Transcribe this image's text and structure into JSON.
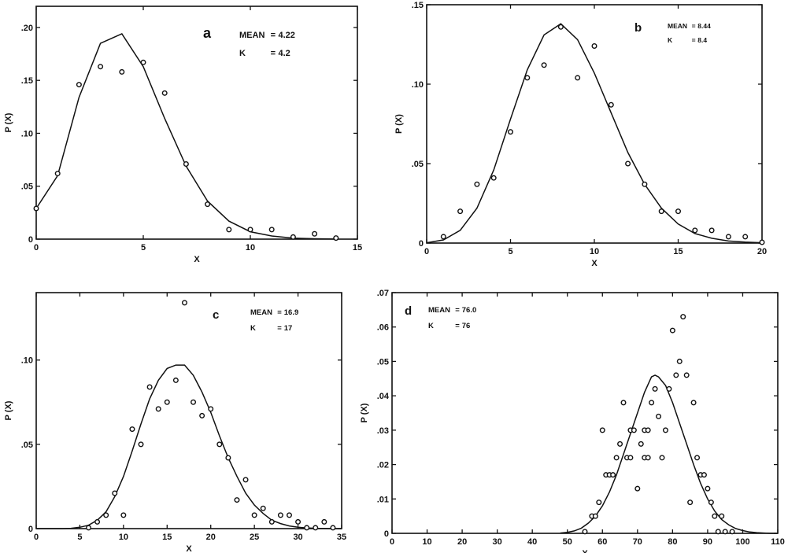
{
  "chart_data": [
    {
      "type": "line",
      "panel": "a",
      "annotations": [
        {
          "label": "MEAN",
          "value": "4.22"
        },
        {
          "label": "K",
          "value": "4.2"
        }
      ],
      "xlabel": "X",
      "ylabel": "P (X)",
      "xlim": [
        0,
        15
      ],
      "ylim": [
        0,
        0.22
      ],
      "x_ticks": [
        0,
        5,
        10,
        15
      ],
      "x_tick_labels": [
        "0",
        "5",
        "10",
        "15"
      ],
      "y_ticks": [
        0,
        0.05,
        0.1,
        0.15,
        0.2
      ],
      "y_tick_labels": [
        "0",
        ".05",
        ".10",
        ".15",
        ".20"
      ],
      "grid": false,
      "series": [
        {
          "kind": "line",
          "x": [
            0,
            1,
            2,
            3,
            4,
            5,
            6,
            7,
            8,
            9,
            10,
            11,
            12,
            13,
            14
          ],
          "y": [
            0.029,
            0.06,
            0.134,
            0.185,
            0.194,
            0.163,
            0.114,
            0.069,
            0.036,
            0.017,
            0.007,
            0.003,
            0.001,
            0.0004,
            0.0001
          ]
        },
        {
          "kind": "points",
          "x": [
            0,
            1,
            2,
            3,
            4,
            5,
            6,
            7,
            8,
            9,
            10,
            11,
            12,
            13,
            14
          ],
          "y": [
            0.029,
            0.062,
            0.146,
            0.163,
            0.158,
            0.167,
            0.138,
            0.071,
            0.033,
            0.009,
            0.009,
            0.009,
            0.002,
            0.005,
            0.001
          ]
        }
      ]
    },
    {
      "type": "line",
      "panel": "b",
      "annotations": [
        {
          "label": "MEAN",
          "value": "8.44"
        },
        {
          "label": "K",
          "value": "8.4"
        }
      ],
      "xlabel": "X",
      "ylabel": "P (X)",
      "xlim": [
        0,
        20
      ],
      "ylim": [
        0,
        0.15
      ],
      "x_ticks": [
        0,
        5,
        10,
        15,
        20
      ],
      "x_tick_labels": [
        "0",
        "5",
        "10",
        "15",
        "20"
      ],
      "y_ticks": [
        0,
        0.05,
        0.1,
        0.15
      ],
      "y_tick_labels": [
        "0",
        ".05",
        ".10",
        ".15"
      ],
      "grid": false,
      "series": [
        {
          "kind": "line",
          "x": [
            0,
            1,
            2,
            3,
            4,
            5,
            6,
            7,
            8,
            9,
            10,
            11,
            12,
            13,
            14,
            15,
            16,
            17,
            18,
            19,
            20
          ],
          "y": [
            0.0002,
            0.002,
            0.008,
            0.022,
            0.046,
            0.078,
            0.109,
            0.131,
            0.138,
            0.128,
            0.107,
            0.082,
            0.057,
            0.037,
            0.022,
            0.012,
            0.006,
            0.003,
            0.0013,
            0.0006,
            0.0002
          ]
        },
        {
          "kind": "points",
          "x": [
            1,
            2,
            3,
            4,
            5,
            6,
            7,
            8,
            9,
            10,
            11,
            12,
            13,
            14,
            15,
            16,
            17,
            18,
            19,
            20
          ],
          "y": [
            0.004,
            0.02,
            0.037,
            0.041,
            0.07,
            0.104,
            0.112,
            0.136,
            0.104,
            0.124,
            0.087,
            0.05,
            0.037,
            0.02,
            0.02,
            0.008,
            0.008,
            0.004,
            0.004,
            0.0005
          ]
        }
      ]
    },
    {
      "type": "line",
      "panel": "c",
      "annotations": [
        {
          "label": "MEAN",
          "value": "16.9"
        },
        {
          "label": "K",
          "value": "17"
        }
      ],
      "xlabel": "X",
      "ylabel": "P (X)",
      "xlim": [
        0,
        35
      ],
      "ylim": [
        0,
        0.14
      ],
      "x_ticks": [
        0,
        5,
        10,
        15,
        20,
        25,
        30,
        35
      ],
      "x_tick_labels": [
        "0",
        "5",
        "10",
        "15",
        "20",
        "25",
        "30",
        "35"
      ],
      "y_ticks": [
        0,
        0.05,
        0.1
      ],
      "y_tick_labels": [
        "0",
        ".05",
        ".10"
      ],
      "grid": false,
      "series": [
        {
          "kind": "line",
          "x": [
            0,
            1,
            2,
            3,
            4,
            5,
            6,
            7,
            8,
            9,
            10,
            11,
            12,
            13,
            14,
            15,
            16,
            17,
            18,
            19,
            20,
            21,
            22,
            23,
            24,
            25,
            26,
            27,
            28,
            29,
            30,
            31,
            32,
            33,
            34,
            35
          ],
          "y": [
            0,
            0,
            0,
            0,
            0.0002,
            0.0008,
            0.002,
            0.005,
            0.01,
            0.019,
            0.031,
            0.046,
            0.062,
            0.077,
            0.088,
            0.095,
            0.097,
            0.097,
            0.091,
            0.081,
            0.069,
            0.055,
            0.042,
            0.031,
            0.021,
            0.014,
            0.009,
            0.005,
            0.003,
            0.0016,
            0.0008,
            0.0004,
            0.0002,
            0.0001,
            0,
            0
          ]
        },
        {
          "kind": "points",
          "x": [
            6,
            7,
            8,
            9,
            10,
            11,
            12,
            13,
            14,
            15,
            16,
            17,
            18,
            19,
            20,
            21,
            22,
            23,
            24,
            25,
            26,
            27,
            28,
            29,
            30,
            31,
            32,
            33,
            34
          ],
          "y": [
            0.0005,
            0.004,
            0.008,
            0.021,
            0.008,
            0.059,
            0.05,
            0.084,
            0.071,
            0.075,
            0.088,
            0.134,
            0.075,
            0.067,
            0.071,
            0.05,
            0.042,
            0.017,
            0.029,
            0.008,
            0.012,
            0.004,
            0.008,
            0.008,
            0.004,
            0.0005,
            0.0005,
            0.004,
            0.0005
          ]
        }
      ]
    },
    {
      "type": "line",
      "panel": "d",
      "annotations": [
        {
          "label": "MEAN",
          "value": "76.0"
        },
        {
          "label": "K",
          "value": "76"
        }
      ],
      "xlabel": "X",
      "ylabel": "P (X)",
      "xlim": [
        0,
        110
      ],
      "ylim": [
        0,
        0.07
      ],
      "x_ticks": [
        0,
        10,
        20,
        30,
        40,
        50,
        60,
        70,
        80,
        90,
        100,
        110
      ],
      "x_tick_labels": [
        "0",
        "10",
        "20",
        "30",
        "40",
        "50",
        "60",
        "70",
        "80",
        "90",
        "100",
        "110"
      ],
      "y_ticks": [
        0,
        0.01,
        0.02,
        0.03,
        0.04,
        0.05,
        0.06,
        0.07
      ],
      "y_tick_labels": [
        "0",
        ".01",
        ".02",
        ".03",
        ".04",
        ".05",
        ".06",
        ".07"
      ],
      "grid": false,
      "series": [
        {
          "kind": "line",
          "x": [
            48,
            50,
            52,
            54,
            56,
            58,
            60,
            62,
            64,
            66,
            68,
            70,
            72,
            74,
            75,
            76,
            78,
            80,
            82,
            84,
            86,
            88,
            90,
            92,
            94,
            96,
            98,
            100,
            102,
            104,
            106,
            108,
            110
          ],
          "y": [
            0.0001,
            0.0003,
            0.0007,
            0.0015,
            0.003,
            0.005,
            0.008,
            0.012,
            0.017,
            0.023,
            0.029,
            0.035,
            0.041,
            0.0455,
            0.046,
            0.0455,
            0.043,
            0.038,
            0.032,
            0.026,
            0.02,
            0.0145,
            0.01,
            0.0065,
            0.004,
            0.0025,
            0.0014,
            0.0008,
            0.0004,
            0.0002,
            0.0001,
            0,
            0
          ]
        },
        {
          "kind": "points",
          "x": [
            55,
            57,
            58,
            59,
            60,
            61,
            62,
            63,
            64,
            65,
            66,
            67,
            68,
            68,
            69,
            70,
            71,
            72,
            72,
            73,
            73,
            74,
            75,
            76,
            77,
            78,
            79,
            80,
            81,
            82,
            83,
            84,
            85,
            86,
            87,
            88,
            89,
            90,
            91,
            92,
            93,
            94,
            95,
            97
          ],
          "y": [
            0.0005,
            0.005,
            0.005,
            0.009,
            0.03,
            0.017,
            0.017,
            0.017,
            0.022,
            0.026,
            0.038,
            0.022,
            0.03,
            0.022,
            0.03,
            0.013,
            0.026,
            0.022,
            0.03,
            0.03,
            0.022,
            0.038,
            0.042,
            0.034,
            0.022,
            0.03,
            0.042,
            0.059,
            0.046,
            0.05,
            0.063,
            0.046,
            0.009,
            0.038,
            0.022,
            0.017,
            0.017,
            0.013,
            0.009,
            0.005,
            0.0005,
            0.005,
            0.0005,
            0.0005
          ]
        }
      ]
    }
  ]
}
